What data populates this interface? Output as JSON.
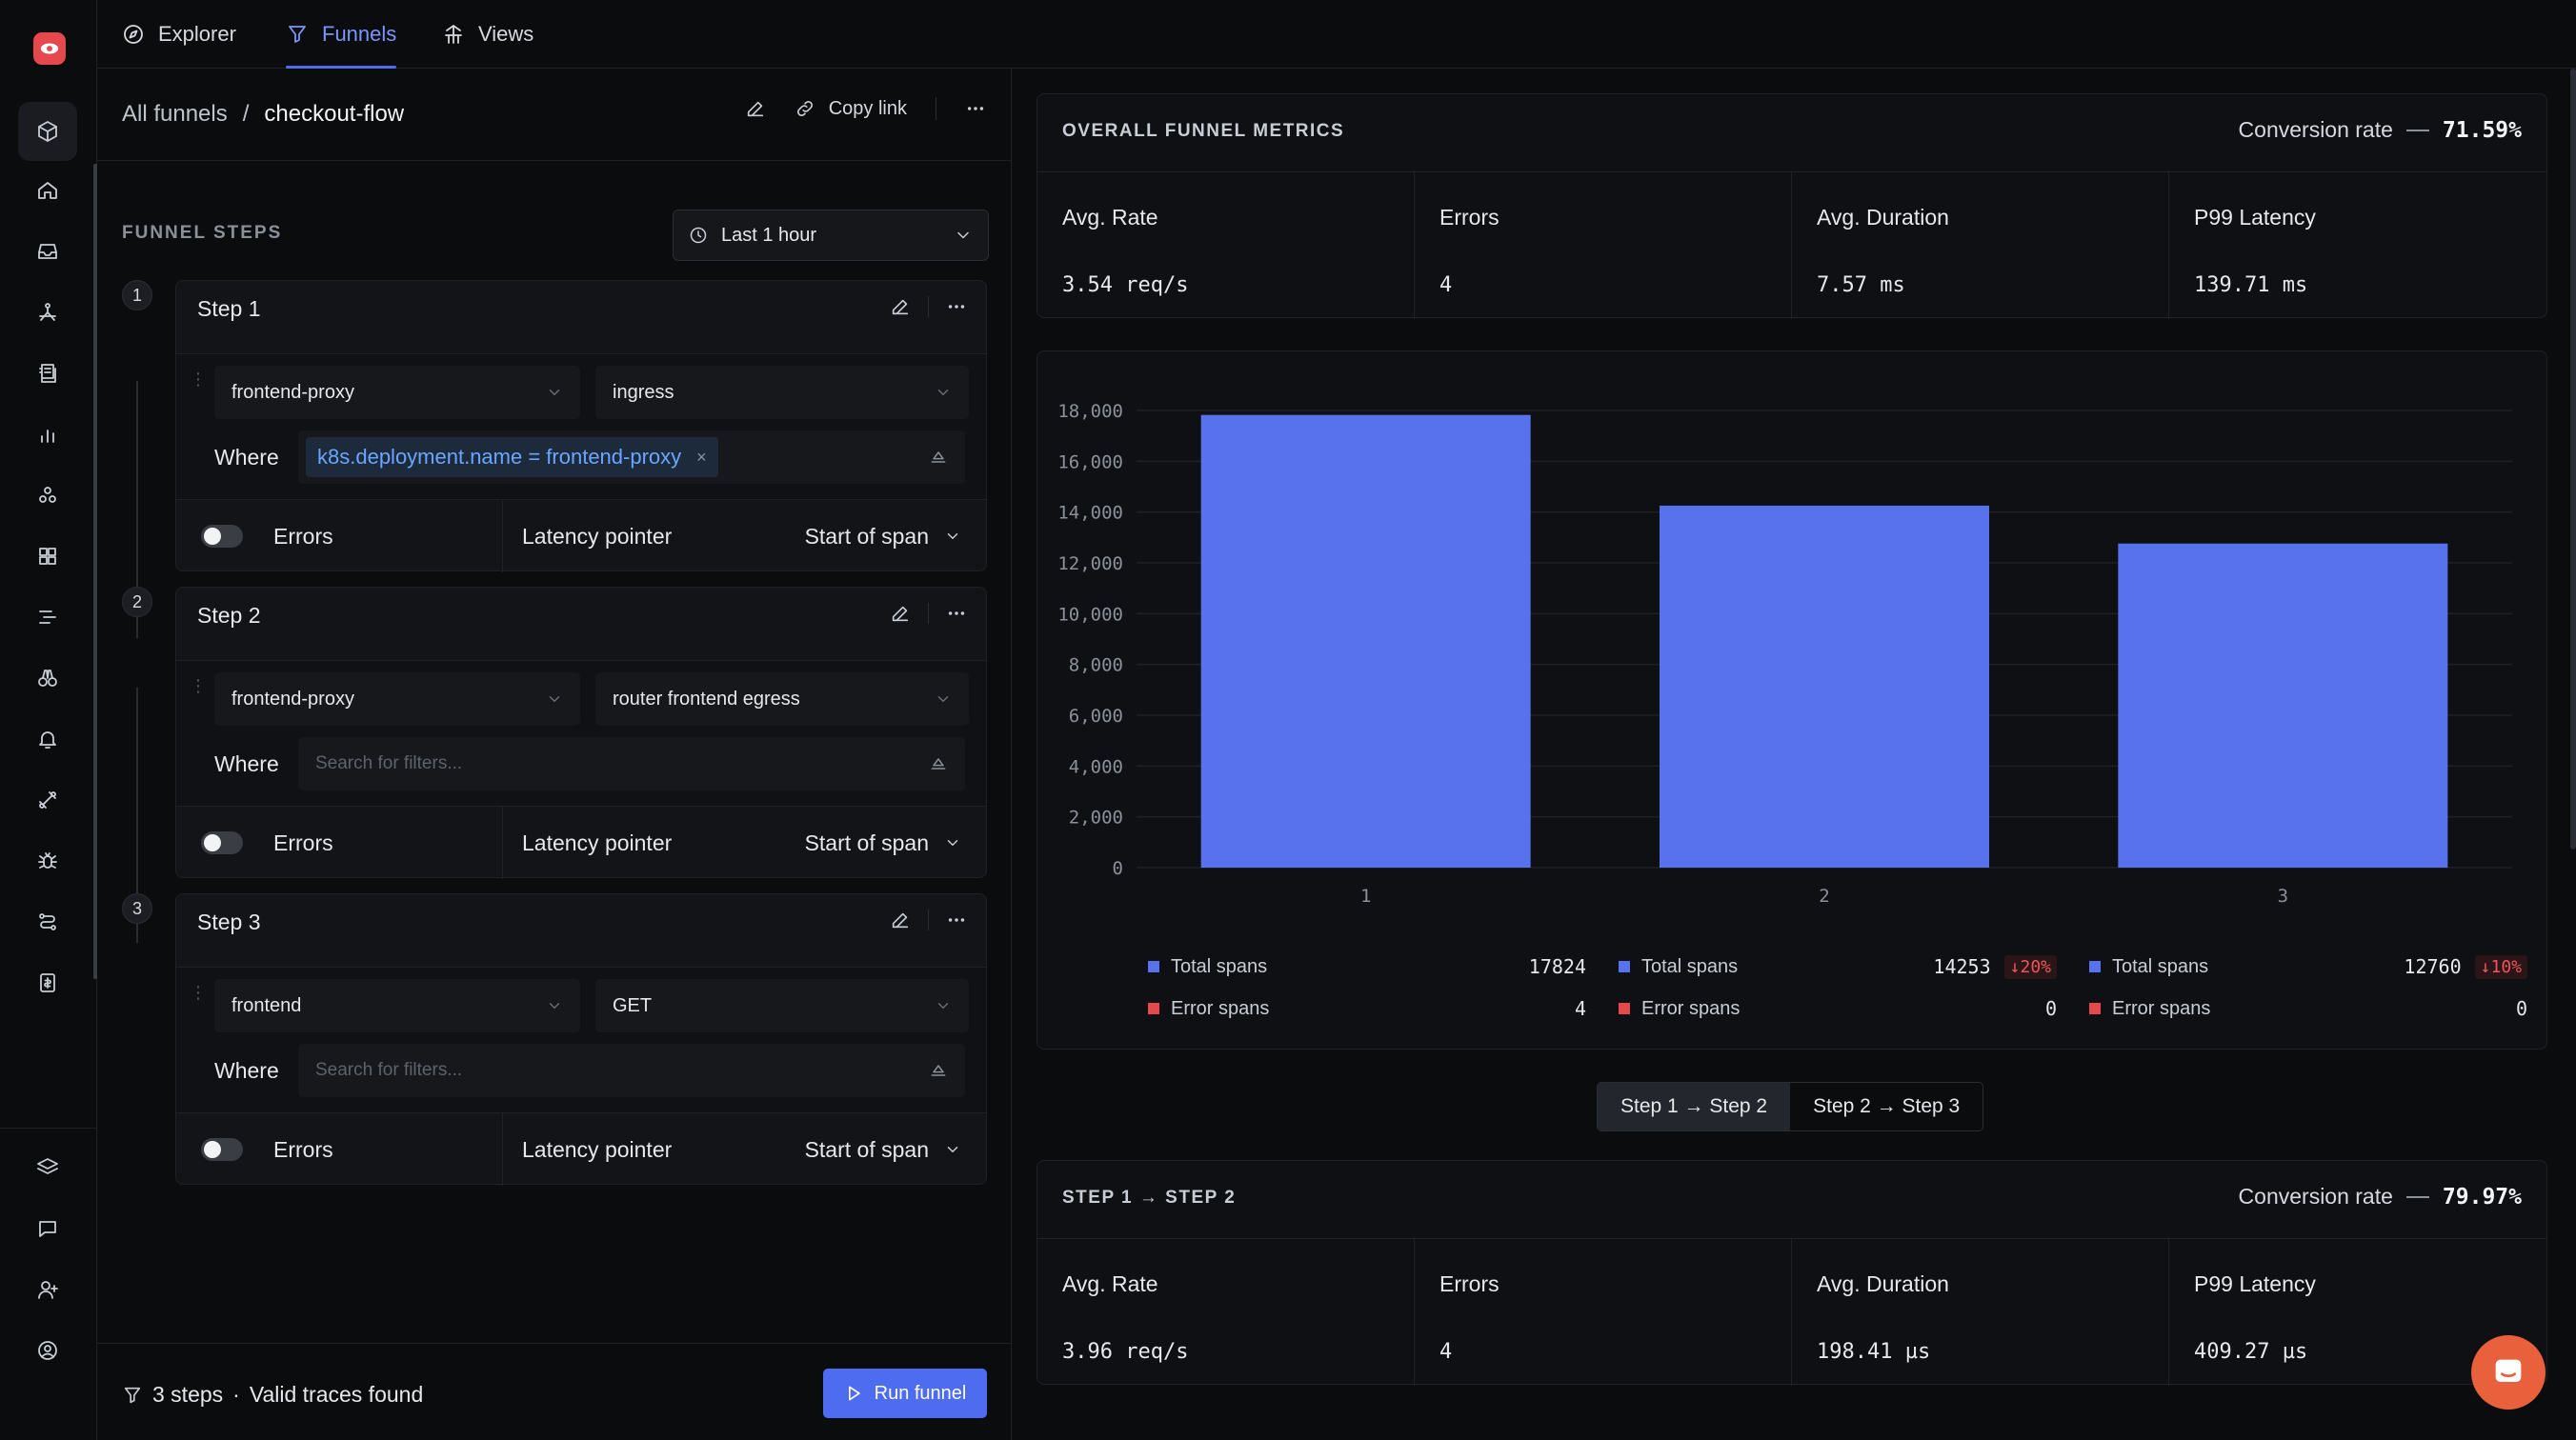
{
  "nav": {
    "tabs": [
      {
        "label": "Explorer",
        "icon": "compass-icon"
      },
      {
        "label": "Funnels",
        "icon": "funnel-icon"
      },
      {
        "label": "Views",
        "icon": "views-icon"
      }
    ]
  },
  "sidebar": {
    "icons": [
      "cube-icon",
      "home-icon",
      "inbox-icon",
      "services-icon",
      "logs-icon",
      "metrics-icon",
      "integrations-icon",
      "dashboards-icon",
      "traces-icon",
      "binoculars-icon",
      "alerts-icon",
      "pipelines-icon",
      "bug-icon",
      "workflows-icon",
      "billing-icon",
      "layers-icon",
      "chat-icon",
      "invite-user-icon",
      "profile-icon"
    ]
  },
  "header": {
    "breadcrumb_root": "All funnels",
    "breadcrumb_sep": "/",
    "breadcrumb_current": "checkout-flow",
    "copy_link": "Copy link"
  },
  "funnel": {
    "section_label": "FUNNEL STEPS",
    "time_range": "Last 1 hour",
    "where_label": "Where",
    "errors_label": "Errors",
    "latency_label": "Latency pointer",
    "latency_value": "Start of span",
    "filter_placeholder": "Search for filters...",
    "steps": [
      {
        "num": "1",
        "title": "Step 1",
        "service": "frontend-proxy",
        "span": "ingress",
        "filter": "k8s.deployment.name = frontend-proxy",
        "filter_remove": "×"
      },
      {
        "num": "2",
        "title": "Step 2",
        "service": "frontend-proxy",
        "span": "router frontend egress"
      },
      {
        "num": "3",
        "title": "Step 3",
        "service": "frontend",
        "span": "GET"
      }
    ],
    "summary_steps": "3 steps",
    "summary_dot": "·",
    "summary_status": "Valid traces found",
    "run_label": "Run funnel"
  },
  "overall": {
    "title": "OVERALL FUNNEL METRICS",
    "conversion_label": "Conversion rate",
    "conversion_value": "71.59%",
    "metrics": [
      {
        "label": "Avg. Rate",
        "value": "3.54 req/s"
      },
      {
        "label": "Errors",
        "value": "4"
      },
      {
        "label": "Avg. Duration",
        "value": "7.57 ms"
      },
      {
        "label": "P99 Latency",
        "value": "139.71 ms"
      }
    ]
  },
  "chart_data": {
    "type": "bar",
    "categories": [
      "1",
      "2",
      "3"
    ],
    "series": [
      {
        "name": "Total spans",
        "values": [
          17824,
          14253,
          12760
        ],
        "color": "#5871ed"
      },
      {
        "name": "Error spans",
        "values": [
          4,
          0,
          0
        ],
        "color": "#e5484d"
      }
    ],
    "ylim": [
      0,
      18000
    ],
    "yticks": [
      "0",
      "2,000",
      "4,000",
      "6,000",
      "8,000",
      "10,000",
      "12,000",
      "14,000",
      "16,000",
      "18,000"
    ],
    "ytick_values": [
      0,
      2000,
      4000,
      6000,
      8000,
      10000,
      12000,
      14000,
      16000,
      18000
    ],
    "deltas": [
      "",
      "20%",
      "10%"
    ],
    "title": "",
    "xlabel": "",
    "ylabel": ""
  },
  "transition_tabs": {
    "active": "Step 1 → Step 2",
    "other": "Step 2 → Step 3"
  },
  "transition": {
    "title": "STEP 1 → STEP 2",
    "conversion_label": "Conversion rate",
    "conversion_value": "79.97%",
    "metrics": [
      {
        "label": "Avg. Rate",
        "value": "3.96 req/s"
      },
      {
        "label": "Errors",
        "value": "4"
      },
      {
        "label": "Avg. Duration",
        "value": "198.41 µs"
      },
      {
        "label": "P99 Latency",
        "value": "409.27 µs"
      }
    ]
  },
  "colors": {
    "accent": "#4e6cf0",
    "bar": "#5871ed",
    "error": "#e5484d",
    "brand": "#e5484d",
    "chat": "#e8603c"
  }
}
